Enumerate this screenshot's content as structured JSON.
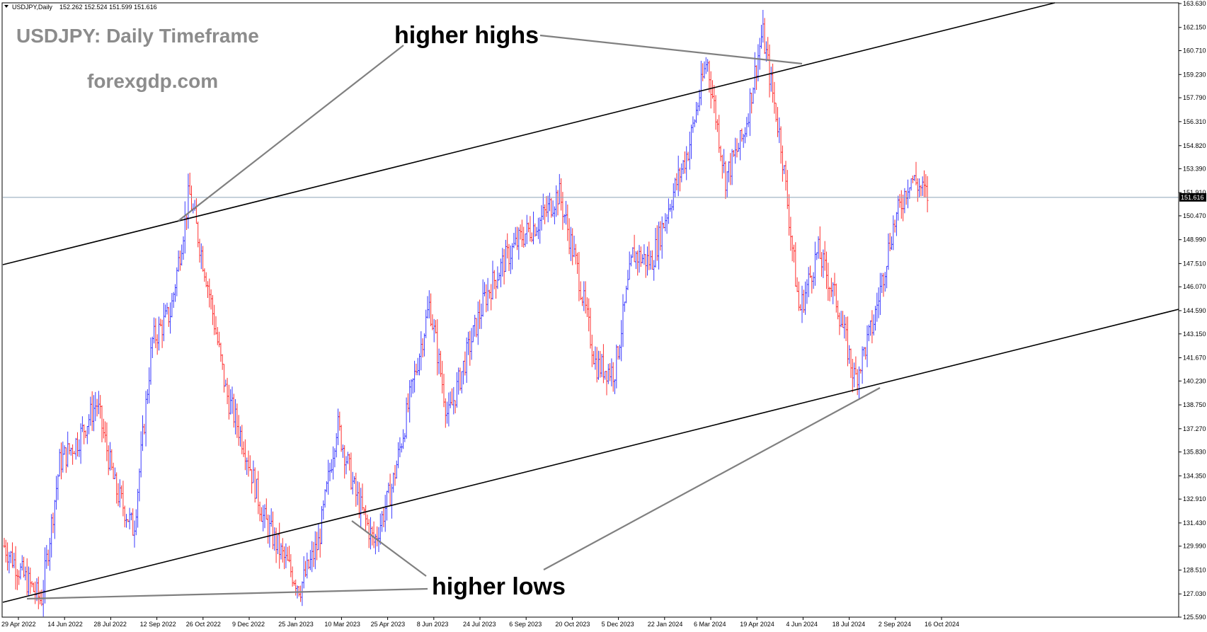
{
  "header": {
    "symbol": "USDJPY,Daily",
    "ohlc": "152.262 152.524 151.599 151.616"
  },
  "watermark": {
    "title": "USDJPY: Daily Timeframe",
    "site": "forexgdp.com"
  },
  "annotations": {
    "higher_highs": "higher highs",
    "higher_lows": "higher lows"
  },
  "colors": {
    "bull": "#3a3aff",
    "bear": "#ff3030",
    "channel": "#000000",
    "pointer": "#808080",
    "price_line": "#8ea3b8",
    "watermark": "#8c8c8c"
  },
  "chart_data": {
    "type": "candlestick-ohlc",
    "symbol": "USDJPY",
    "timeframe": "Daily",
    "current_price": 151.616,
    "y_ticks": [
      "163.630",
      "162.150",
      "160.710",
      "159.230",
      "157.790",
      "156.310",
      "154.820",
      "153.390",
      "151.910",
      "150.470",
      "148.990",
      "147.510",
      "146.070",
      "144.590",
      "143.150",
      "141.670",
      "140.230",
      "138.750",
      "137.270",
      "135.830",
      "134.350",
      "132.910",
      "131.430",
      "129.990",
      "128.510",
      "127.030",
      "125.590"
    ],
    "ylim": [
      125.59,
      163.63
    ],
    "x_ticks": [
      "29 Apr 2022",
      "14 Jun 2022",
      "28 Jul 2022",
      "12 Sep 2022",
      "26 Oct 2022",
      "9 Dec 2022",
      "25 Jan 2023",
      "10 Mar 2023",
      "25 Apr 2023",
      "8 Jun 2023",
      "24 Jul 2023",
      "6 Sep 2023",
      "20 Oct 2023",
      "5 Dec 2023",
      "22 Jan 2024",
      "6 Mar 2024",
      "19 Apr 2024",
      "4 Jun 2024",
      "18 Jul 2024",
      "2 Sep 2024",
      "16 Oct 2024"
    ],
    "close_path": [
      [
        "29 Apr 2022",
        130.0
      ],
      [
        "May 2022",
        128.2
      ],
      [
        "May 2022 low",
        126.6
      ],
      [
        "14 Jun 2022",
        135.2
      ],
      [
        "Jun 2022",
        136.6
      ],
      [
        "14 Jul 2022",
        138.9
      ],
      [
        "28 Jul 2022",
        133.6
      ],
      [
        "2 Aug 2022",
        131.0
      ],
      [
        "12 Sep 2022",
        142.7
      ],
      [
        "Sep 2022",
        144.5
      ],
      [
        "21 Oct 2022",
        151.9
      ],
      [
        "26 Oct 2022",
        146.3
      ],
      [
        "Nov 2022",
        139.5
      ],
      [
        "9 Dec 2022",
        136.2
      ],
      [
        "20 Dec 2022",
        131.8
      ],
      [
        "Jan 2023",
        129.5
      ],
      [
        "16 Jan 2023",
        127.4
      ],
      [
        "25 Jan 2023",
        130.2
      ],
      [
        "8 Mar 2023",
        137.6
      ],
      [
        "10 Mar 2023",
        133.2
      ],
      [
        "24 Mar 2023",
        130.2
      ],
      [
        "25 Apr 2023",
        133.8
      ],
      [
        "8 Jun 2023",
        139.5
      ],
      [
        "30 Jun 2023",
        145.0
      ],
      [
        "14 Jul 2023",
        137.9
      ],
      [
        "24 Jul 2023",
        141.8
      ],
      [
        "Aug 2023",
        145.4
      ],
      [
        "6 Sep 2023",
        147.6
      ],
      [
        "Sep 2023",
        149.2
      ],
      [
        "20 Oct 2023",
        150.2
      ],
      [
        "13 Nov 2023",
        151.9
      ],
      [
        "5 Dec 2023",
        147.1
      ],
      [
        "14 Dec 2023",
        141.2
      ],
      [
        "28 Dec 2023",
        140.8
      ],
      [
        "22 Jan 2024",
        148.1
      ],
      [
        "6 Mar 2024",
        147.6
      ],
      [
        "26 Mar 2024",
        151.3
      ],
      [
        "19 Apr 2024",
        154.6
      ],
      [
        "29 Apr 2024",
        160.2
      ],
      [
        "3 May 2024",
        152.8
      ],
      [
        "4 Jun 2024",
        155.5
      ],
      [
        "3 Jul 2024",
        161.9
      ],
      [
        "18 Jul 2024",
        155.0
      ],
      [
        "5 Aug 2024",
        144.5
      ],
      [
        "15 Aug 2024",
        148.3
      ],
      [
        "2 Sep 2024",
        145.2
      ],
      [
        "16 Sep 2024",
        140.3
      ],
      [
        "1 Oct 2024",
        143.8
      ],
      [
        "16 Oct 2024",
        149.5
      ],
      [
        "24 Oct 2024",
        152.9
      ],
      [
        "29 Oct 2024",
        151.616
      ]
    ]
  }
}
